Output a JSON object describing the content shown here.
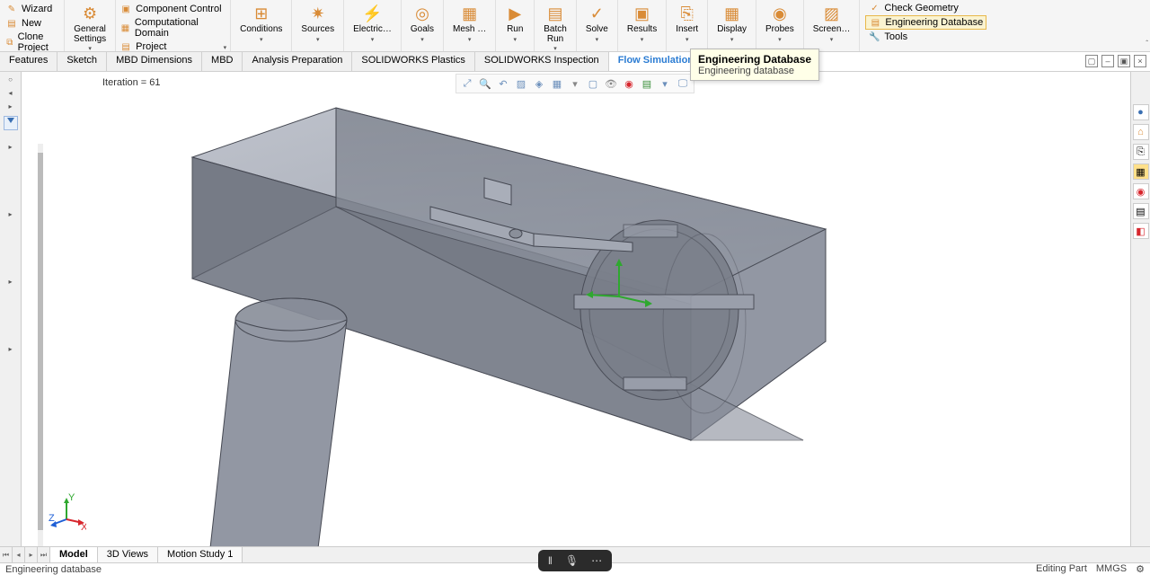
{
  "ribbon": {
    "left_menu": [
      "Wizard",
      "New",
      "Clone Project"
    ],
    "general": {
      "label": "General\nSettings"
    },
    "domain_col": [
      "Component Control",
      "Computational Domain",
      "Project"
    ],
    "groups": [
      "Conditions",
      "Sources",
      "Electric…",
      "Goals",
      "Mesh …",
      "Run",
      "Batch\nRun",
      "Solve",
      "Results",
      "Insert",
      "Display",
      "Probes",
      "Screen…"
    ],
    "right_col": [
      "Check Geometry",
      "Engineering Database",
      "Tools"
    ]
  },
  "tabs": [
    "Features",
    "Sketch",
    "MBD Dimensions",
    "MBD",
    "Analysis Preparation",
    "SOLIDWORKS Plastics",
    "SOLIDWORKS Inspection",
    "Flow Simulation"
  ],
  "active_tab": "Flow Simulation",
  "tooltip": {
    "title": "Engineering Database",
    "desc": "Engineering database"
  },
  "iteration_label": "Iteration = 61",
  "bottom_tabs": [
    "Model",
    "3D Views",
    "Motion Study 1"
  ],
  "active_bottom_tab": "Model",
  "status": {
    "left": "Engineering database",
    "mode": "Editing Part",
    "units": "MMGS"
  },
  "triad_labels": {
    "x": "X",
    "y": "Y",
    "z": "Z"
  },
  "model": {
    "face_fill": "#a8adb7",
    "face_fill_inner": "#898f9a",
    "edge": "#454852",
    "bg": "#ffffff",
    "gizmo": {
      "x": "#d7262d",
      "y": "#2fa82f",
      "z": "#1e5fd6"
    }
  }
}
